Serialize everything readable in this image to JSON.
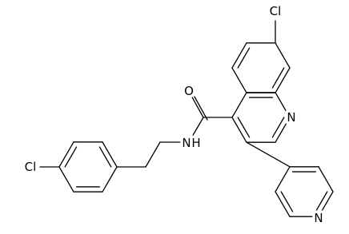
{
  "atoms": [
    {
      "label": "Cl"
    },
    {
      "label": "O"
    },
    {
      "label": "N"
    },
    {
      "label": "H"
    },
    {
      "label": "N"
    },
    {
      "label": "Cl"
    },
    {
      "label": "N"
    }
  ]
}
